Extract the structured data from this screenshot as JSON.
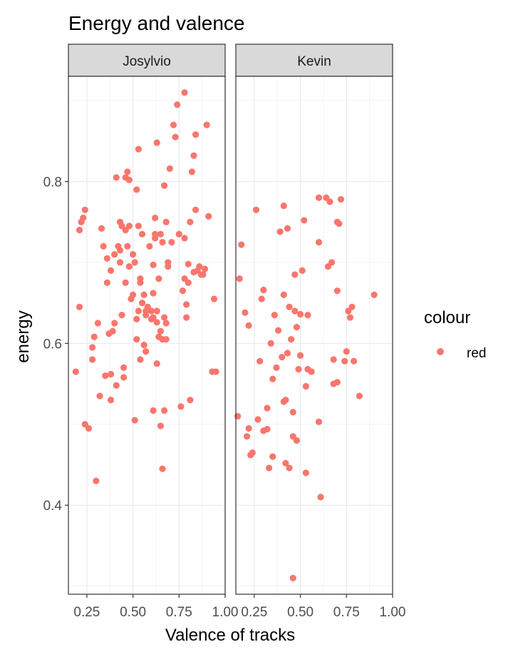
{
  "chart_data": {
    "type": "scatter",
    "title": "Energy and valence",
    "xlabel": "Valence of tracks",
    "ylabel": "energy",
    "xlim": [
      0.15,
      1.0
    ],
    "ylim": [
      0.29,
      0.93
    ],
    "x_ticks": [
      0.25,
      0.5,
      0.75,
      1.0
    ],
    "x_tick_labels": [
      "0.25",
      "0.50",
      "0.75",
      "1.00"
    ],
    "y_ticks": [
      0.4,
      0.6,
      0.8
    ],
    "y_tick_labels": [
      "0.4",
      "0.6",
      "0.8"
    ],
    "grid": true,
    "legend": {
      "title": "colour",
      "position": "right",
      "entries": [
        {
          "label": "red",
          "color": "#F8766D"
        }
      ]
    },
    "point_color": "#F8766D",
    "panels": [
      {
        "name": "Josylvio",
        "points": [
          [
            0.19,
            0.565
          ],
          [
            0.21,
            0.645
          ],
          [
            0.21,
            0.74
          ],
          [
            0.22,
            0.75
          ],
          [
            0.23,
            0.755
          ],
          [
            0.24,
            0.765
          ],
          [
            0.24,
            0.5
          ],
          [
            0.26,
            0.495
          ],
          [
            0.28,
            0.58
          ],
          [
            0.28,
            0.595
          ],
          [
            0.29,
            0.608
          ],
          [
            0.3,
            0.43
          ],
          [
            0.31,
            0.625
          ],
          [
            0.32,
            0.535
          ],
          [
            0.33,
            0.742
          ],
          [
            0.34,
            0.72
          ],
          [
            0.35,
            0.56
          ],
          [
            0.36,
            0.675
          ],
          [
            0.36,
            0.705
          ],
          [
            0.37,
            0.612
          ],
          [
            0.38,
            0.53
          ],
          [
            0.38,
            0.562
          ],
          [
            0.38,
            0.69
          ],
          [
            0.39,
            0.615
          ],
          [
            0.4,
            0.71
          ],
          [
            0.4,
            0.625
          ],
          [
            0.41,
            0.548
          ],
          [
            0.41,
            0.805
          ],
          [
            0.42,
            0.72
          ],
          [
            0.43,
            0.7
          ],
          [
            0.43,
            0.715
          ],
          [
            0.43,
            0.75
          ],
          [
            0.44,
            0.635
          ],
          [
            0.44,
            0.745
          ],
          [
            0.45,
            0.57
          ],
          [
            0.45,
            0.558
          ],
          [
            0.46,
            0.675
          ],
          [
            0.46,
            0.74
          ],
          [
            0.46,
            0.805
          ],
          [
            0.47,
            0.812
          ],
          [
            0.47,
            0.72
          ],
          [
            0.48,
            0.745
          ],
          [
            0.48,
            0.695
          ],
          [
            0.48,
            0.802
          ],
          [
            0.49,
            0.655
          ],
          [
            0.5,
            0.66
          ],
          [
            0.5,
            0.71
          ],
          [
            0.51,
            0.7
          ],
          [
            0.51,
            0.505
          ],
          [
            0.52,
            0.79
          ],
          [
            0.52,
            0.605
          ],
          [
            0.52,
            0.63
          ],
          [
            0.53,
            0.64
          ],
          [
            0.53,
            0.745
          ],
          [
            0.53,
            0.84
          ],
          [
            0.54,
            0.58
          ],
          [
            0.54,
            0.68
          ],
          [
            0.54,
            0.675
          ],
          [
            0.55,
            0.735
          ],
          [
            0.55,
            0.65
          ],
          [
            0.56,
            0.66
          ],
          [
            0.56,
            0.598
          ],
          [
            0.57,
            0.64
          ],
          [
            0.57,
            0.59
          ],
          [
            0.57,
            0.635
          ],
          [
            0.58,
            0.645
          ],
          [
            0.59,
            0.72
          ],
          [
            0.6,
            0.64
          ],
          [
            0.6,
            0.63
          ],
          [
            0.61,
            0.632
          ],
          [
            0.61,
            0.517
          ],
          [
            0.61,
            0.662
          ],
          [
            0.61,
            0.697
          ],
          [
            0.62,
            0.73
          ],
          [
            0.62,
            0.735
          ],
          [
            0.62,
            0.755
          ],
          [
            0.63,
            0.64
          ],
          [
            0.63,
            0.626
          ],
          [
            0.63,
            0.575
          ],
          [
            0.63,
            0.848
          ],
          [
            0.64,
            0.608
          ],
          [
            0.64,
            0.68
          ],
          [
            0.65,
            0.615
          ],
          [
            0.65,
            0.735
          ],
          [
            0.65,
            0.498
          ],
          [
            0.66,
            0.445
          ],
          [
            0.66,
            0.605
          ],
          [
            0.66,
            0.725
          ],
          [
            0.67,
            0.517
          ],
          [
            0.67,
            0.795
          ],
          [
            0.67,
            0.632
          ],
          [
            0.68,
            0.625
          ],
          [
            0.68,
            0.605
          ],
          [
            0.68,
            0.75
          ],
          [
            0.69,
            0.7
          ],
          [
            0.69,
            0.695
          ],
          [
            0.7,
            0.816
          ],
          [
            0.71,
            0.725
          ],
          [
            0.72,
            0.87
          ],
          [
            0.73,
            0.855
          ],
          [
            0.74,
            0.895
          ],
          [
            0.75,
            0.735
          ],
          [
            0.76,
            0.522
          ],
          [
            0.77,
            0.665
          ],
          [
            0.78,
            0.91
          ],
          [
            0.78,
            0.73
          ],
          [
            0.78,
            0.68
          ],
          [
            0.79,
            0.632
          ],
          [
            0.79,
            0.648
          ],
          [
            0.8,
            0.675
          ],
          [
            0.8,
            0.698
          ],
          [
            0.81,
            0.53
          ],
          [
            0.81,
            0.75
          ],
          [
            0.82,
            0.812
          ],
          [
            0.83,
            0.832
          ],
          [
            0.83,
            0.688
          ],
          [
            0.84,
            0.858
          ],
          [
            0.84,
            0.765
          ],
          [
            0.85,
            0.69
          ],
          [
            0.86,
            0.695
          ],
          [
            0.87,
            0.685
          ],
          [
            0.88,
            0.685
          ],
          [
            0.89,
            0.692
          ],
          [
            0.9,
            0.87
          ],
          [
            0.91,
            0.757
          ],
          [
            0.93,
            0.565
          ],
          [
            0.94,
            0.655
          ],
          [
            0.95,
            0.565
          ]
        ]
      },
      {
        "name": "Kevin",
        "points": [
          [
            0.16,
            0.51
          ],
          [
            0.17,
            0.68
          ],
          [
            0.18,
            0.722
          ],
          [
            0.2,
            0.638
          ],
          [
            0.21,
            0.485
          ],
          [
            0.22,
            0.622
          ],
          [
            0.22,
            0.495
          ],
          [
            0.23,
            0.462
          ],
          [
            0.24,
            0.465
          ],
          [
            0.26,
            0.765
          ],
          [
            0.27,
            0.506
          ],
          [
            0.28,
            0.578
          ],
          [
            0.29,
            0.655
          ],
          [
            0.3,
            0.666
          ],
          [
            0.3,
            0.492
          ],
          [
            0.32,
            0.52
          ],
          [
            0.32,
            0.494
          ],
          [
            0.33,
            0.446
          ],
          [
            0.34,
            0.6
          ],
          [
            0.35,
            0.46
          ],
          [
            0.35,
            0.556
          ],
          [
            0.36,
            0.635
          ],
          [
            0.37,
            0.57
          ],
          [
            0.38,
            0.616
          ],
          [
            0.39,
            0.738
          ],
          [
            0.4,
            0.583
          ],
          [
            0.41,
            0.77
          ],
          [
            0.41,
            0.528
          ],
          [
            0.41,
            0.66
          ],
          [
            0.42,
            0.452
          ],
          [
            0.42,
            0.53
          ],
          [
            0.43,
            0.588
          ],
          [
            0.43,
            0.742
          ],
          [
            0.44,
            0.446
          ],
          [
            0.44,
            0.645
          ],
          [
            0.45,
            0.605
          ],
          [
            0.46,
            0.485
          ],
          [
            0.46,
            0.515
          ],
          [
            0.46,
            0.31
          ],
          [
            0.47,
            0.685
          ],
          [
            0.47,
            0.64
          ],
          [
            0.48,
            0.48
          ],
          [
            0.48,
            0.62
          ],
          [
            0.49,
            0.568
          ],
          [
            0.5,
            0.585
          ],
          [
            0.5,
            0.636
          ],
          [
            0.51,
            0.69
          ],
          [
            0.52,
            0.752
          ],
          [
            0.53,
            0.547
          ],
          [
            0.53,
            0.44
          ],
          [
            0.54,
            0.635
          ],
          [
            0.54,
            0.568
          ],
          [
            0.56,
            0.565
          ],
          [
            0.6,
            0.503
          ],
          [
            0.6,
            0.725
          ],
          [
            0.6,
            0.78
          ],
          [
            0.61,
            0.41
          ],
          [
            0.64,
            0.78
          ],
          [
            0.65,
            0.695
          ],
          [
            0.66,
            0.775
          ],
          [
            0.67,
            0.7
          ],
          [
            0.68,
            0.58
          ],
          [
            0.68,
            0.55
          ],
          [
            0.7,
            0.552
          ],
          [
            0.7,
            0.75
          ],
          [
            0.7,
            0.665
          ],
          [
            0.71,
            0.748
          ],
          [
            0.72,
            0.778
          ],
          [
            0.74,
            0.578
          ],
          [
            0.75,
            0.59
          ],
          [
            0.76,
            0.64
          ],
          [
            0.77,
            0.632
          ],
          [
            0.78,
            0.645
          ],
          [
            0.79,
            0.578
          ],
          [
            0.82,
            0.535
          ],
          [
            0.9,
            0.66
          ]
        ]
      }
    ]
  }
}
